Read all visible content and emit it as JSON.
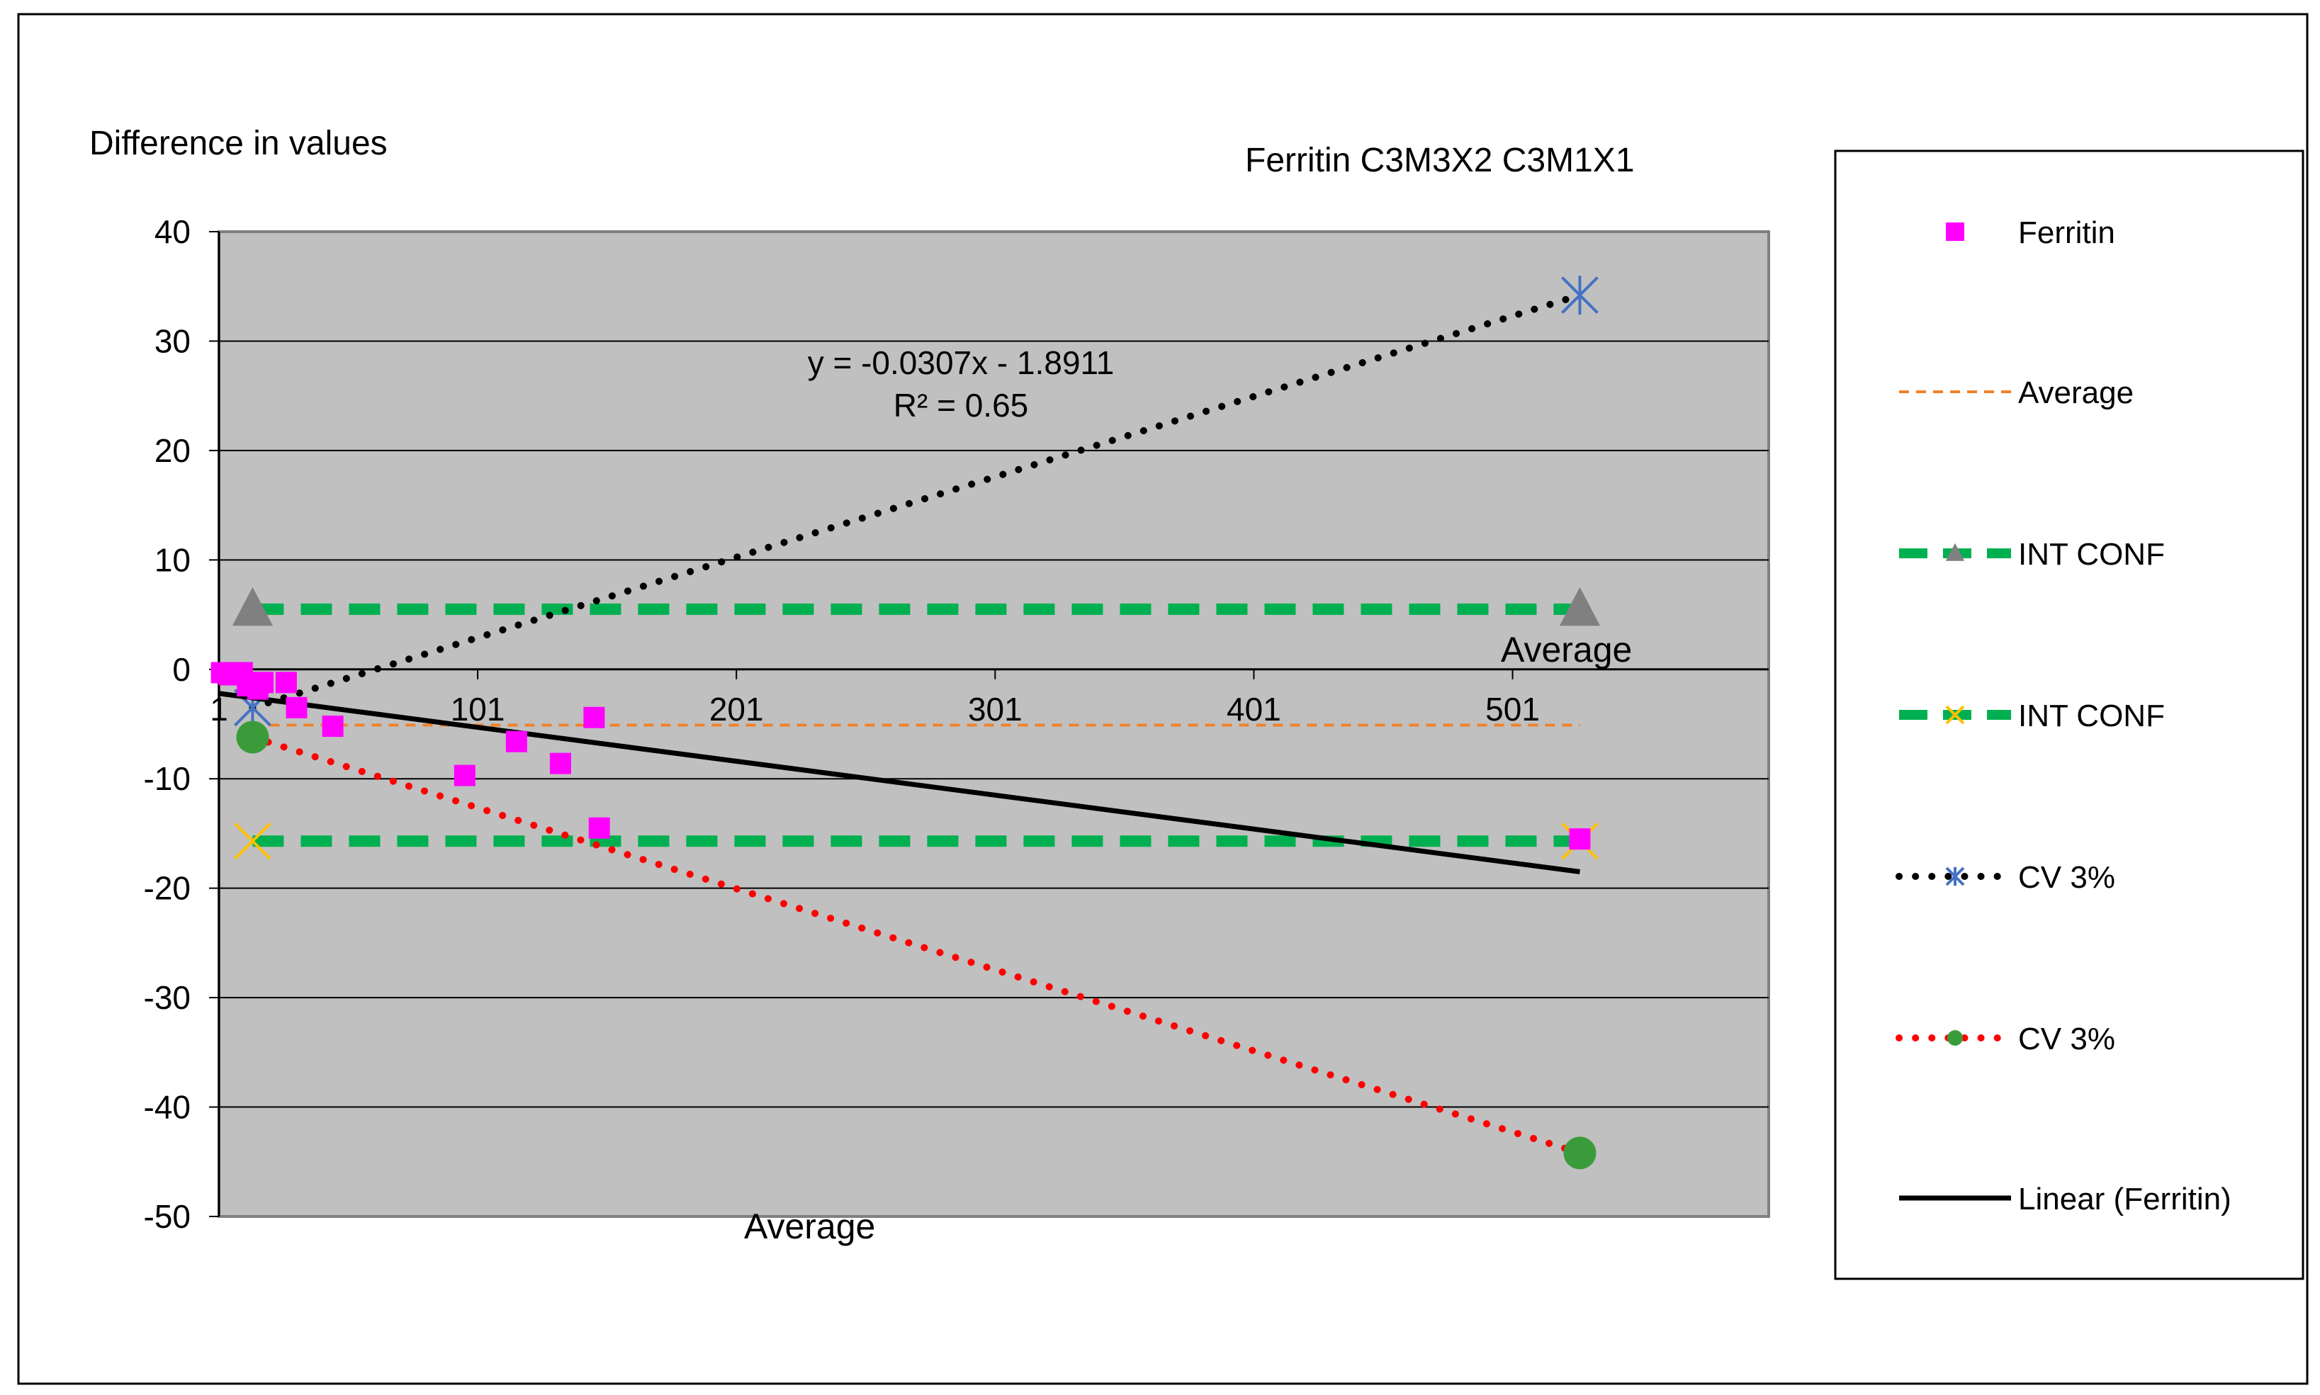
{
  "chart_data": {
    "type": "scatter",
    "title": "Ferritin C3M3X2  C3M1X1",
    "ylabel": "Difference in values",
    "xlabel": "Average",
    "xaxis_end_label": "Average",
    "xlim": [
      1,
      600
    ],
    "ylim": [
      -50,
      40
    ],
    "x_ticks": [
      1,
      101,
      201,
      301,
      401,
      501
    ],
    "x_tick_labels": [
      "1",
      "101",
      "201",
      "301",
      "401",
      "501"
    ],
    "y_ticks": [
      40,
      30,
      20,
      10,
      0,
      -10,
      -20,
      -30,
      -40,
      -50
    ],
    "y_tick_labels": [
      "40",
      "30",
      "20",
      "10",
      "0",
      "-10",
      "-20",
      "-30",
      "-40",
      "-50"
    ],
    "grid": true,
    "legend_position": "right",
    "trendline_equation": "y = -0.0307x - 1.8911",
    "trendline_r2": "R² = 0.65",
    "series": [
      {
        "name": "Ferritin",
        "kind": "points",
        "color": "#ff00ff",
        "x": [
          2,
          5,
          10,
          12,
          16,
          18,
          27,
          31,
          45,
          96,
          116,
          133,
          146,
          148,
          527
        ],
        "y": [
          -0.3,
          -0.5,
          -0.3,
          -1.5,
          -1.8,
          -1.2,
          -1.2,
          -3.5,
          -5.2,
          -9.7,
          -6.6,
          -8.6,
          -4.4,
          -14.5,
          -15.5
        ]
      },
      {
        "name": "Average",
        "kind": "line-dashed-thin",
        "color": "#f0822a",
        "x": [
          14,
          527
        ],
        "y": [
          -5.1,
          -5.1
        ]
      },
      {
        "name": "INT CONF",
        "kind": "line-dashed-thick",
        "color": "#00b050",
        "marker": "triangle",
        "marker_color": "#808080",
        "x": [
          14,
          527
        ],
        "y": [
          5.5,
          5.5
        ]
      },
      {
        "name": "INT CONF",
        "kind": "line-dashed-thick",
        "color": "#00b050",
        "marker": "x",
        "marker_color": "#ffc000",
        "x": [
          14,
          527
        ],
        "y": [
          -15.7,
          -15.7
        ]
      },
      {
        "name": "CV 3%",
        "kind": "line-dotted",
        "color": "#000000",
        "marker": "star",
        "marker_color": "#4472c4",
        "x": [
          14,
          527
        ],
        "y": [
          -3.5,
          34.2
        ]
      },
      {
        "name": "CV 3%",
        "kind": "line-dotted",
        "color": "#ff0000",
        "marker": "circle",
        "marker_color": "#3a9b3a",
        "x": [
          14,
          527
        ],
        "y": [
          -6.2,
          -44.2
        ]
      },
      {
        "name": "Linear (Ferritin)",
        "kind": "line-solid",
        "color": "#000000",
        "x": [
          1,
          527
        ],
        "y": [
          -2.2,
          -18.5
        ]
      }
    ]
  }
}
